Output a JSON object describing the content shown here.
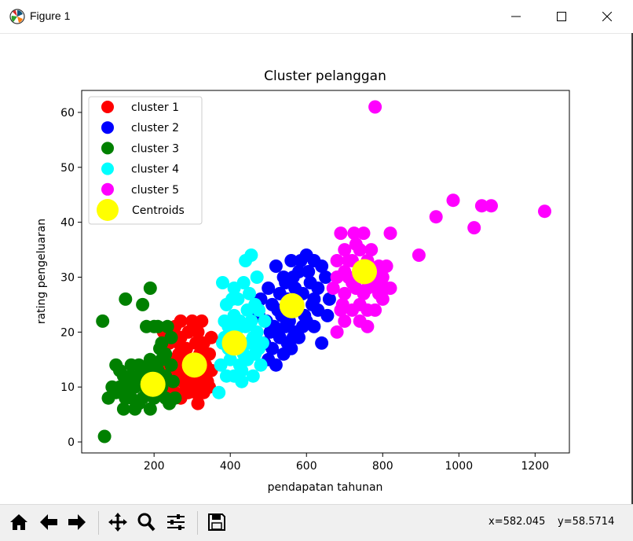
{
  "window": {
    "title": "Figure 1",
    "controls": [
      "minimize",
      "maximize",
      "close"
    ]
  },
  "toolbar": {
    "buttons": [
      {
        "name": "home",
        "icon": "home-icon"
      },
      {
        "name": "back",
        "icon": "arrow-left-icon"
      },
      {
        "name": "forward",
        "icon": "arrow-right-icon"
      },
      {
        "name": "pan",
        "icon": "move-icon"
      },
      {
        "name": "zoom",
        "icon": "magnifier-icon"
      },
      {
        "name": "configure-subplots",
        "icon": "sliders-icon"
      },
      {
        "name": "save",
        "icon": "floppy-icon"
      }
    ],
    "coord_x": "x=582.045",
    "coord_y": "y=58.5714"
  },
  "chart_data": {
    "type": "scatter",
    "title": "Cluster pelanggan",
    "xlabel": "pendapatan tahunan",
    "ylabel": "rating pengeluaran",
    "xlim": [
      10,
      1290
    ],
    "ylim": [
      -2,
      64
    ],
    "xticks": [
      200,
      400,
      600,
      800,
      1000,
      1200
    ],
    "yticks": [
      0,
      10,
      20,
      30,
      40,
      50,
      60
    ],
    "grid": false,
    "legend_position": "upper-left",
    "series": [
      {
        "name": "cluster 1",
        "color": "#ff0000",
        "points": [
          [
            225,
            20
          ],
          [
            240,
            18
          ],
          [
            255,
            21
          ],
          [
            270,
            19
          ],
          [
            285,
            17
          ],
          [
            300,
            22
          ],
          [
            315,
            20
          ],
          [
            330,
            18
          ],
          [
            345,
            16
          ],
          [
            260,
            13
          ],
          [
            275,
            11
          ],
          [
            290,
            9
          ],
          [
            305,
            12
          ],
          [
            320,
            10
          ],
          [
            335,
            14
          ],
          [
            250,
            15
          ],
          [
            265,
            16
          ],
          [
            280,
            14
          ],
          [
            295,
            15
          ],
          [
            310,
            13
          ],
          [
            325,
            12
          ],
          [
            340,
            11
          ],
          [
            255,
            9
          ],
          [
            270,
            8
          ],
          [
            285,
            10
          ],
          [
            300,
            11
          ],
          [
            315,
            7
          ],
          [
            330,
            9
          ],
          [
            240,
            12
          ],
          [
            245,
            10
          ],
          [
            320,
            16
          ],
          [
            310,
            18
          ],
          [
            290,
            20
          ],
          [
            265,
            18
          ],
          [
            350,
            19
          ],
          [
            300,
            14
          ],
          [
            280,
            12
          ],
          [
            235,
            14
          ],
          [
            350,
            13
          ],
          [
            270,
            22
          ],
          [
            325,
            22
          ],
          [
            310,
            9
          ],
          [
            345,
            10
          ]
        ]
      },
      {
        "name": "cluster 2",
        "color": "#0000ff",
        "points": [
          [
            500,
            28
          ],
          [
            520,
            32
          ],
          [
            540,
            30
          ],
          [
            560,
            33
          ],
          [
            580,
            31
          ],
          [
            600,
            34
          ],
          [
            620,
            33
          ],
          [
            640,
            32
          ],
          [
            510,
            25
          ],
          [
            530,
            27
          ],
          [
            550,
            26
          ],
          [
            570,
            28
          ],
          [
            590,
            27
          ],
          [
            610,
            29
          ],
          [
            630,
            28
          ],
          [
            650,
            30
          ],
          [
            495,
            22
          ],
          [
            515,
            21
          ],
          [
            535,
            23
          ],
          [
            555,
            22
          ],
          [
            575,
            24
          ],
          [
            595,
            23
          ],
          [
            615,
            25
          ],
          [
            490,
            18
          ],
          [
            510,
            17
          ],
          [
            530,
            19
          ],
          [
            550,
            18
          ],
          [
            570,
            20
          ],
          [
            590,
            21
          ],
          [
            500,
            15
          ],
          [
            520,
            14
          ],
          [
            540,
            16
          ],
          [
            560,
            17
          ],
          [
            580,
            19
          ],
          [
            600,
            22
          ],
          [
            620,
            21
          ],
          [
            640,
            18
          ],
          [
            660,
            26
          ],
          [
            655,
            23
          ],
          [
            605,
            31
          ],
          [
            585,
            33
          ],
          [
            565,
            30
          ],
          [
            545,
            29
          ],
          [
            525,
            24
          ],
          [
            505,
            20
          ],
          [
            525,
            20
          ],
          [
            545,
            21
          ],
          [
            565,
            19
          ],
          [
            620,
            26
          ],
          [
            630,
            24
          ],
          [
            480,
            26
          ],
          [
            475,
            23
          ]
        ]
      },
      {
        "name": "cluster 3",
        "color": "#008000",
        "points": [
          [
            65,
            22
          ],
          [
            70,
            1
          ],
          [
            80,
            8
          ],
          [
            90,
            10
          ],
          [
            100,
            14
          ],
          [
            110,
            13
          ],
          [
            120,
            12
          ],
          [
            125,
            26
          ],
          [
            130,
            11
          ],
          [
            140,
            12
          ],
          [
            150,
            10
          ],
          [
            160,
            14
          ],
          [
            170,
            25
          ],
          [
            180,
            21
          ],
          [
            190,
            28
          ],
          [
            200,
            21
          ],
          [
            210,
            21
          ],
          [
            215,
            17
          ],
          [
            220,
            15
          ],
          [
            230,
            12
          ],
          [
            100,
            9
          ],
          [
            110,
            10
          ],
          [
            120,
            6
          ],
          [
            130,
            9
          ],
          [
            140,
            8
          ],
          [
            150,
            6
          ],
          [
            160,
            7
          ],
          [
            170,
            8
          ],
          [
            180,
            9
          ],
          [
            190,
            6
          ],
          [
            200,
            8
          ],
          [
            210,
            9
          ],
          [
            220,
            10
          ],
          [
            230,
            8
          ],
          [
            240,
            7
          ],
          [
            160,
            12
          ],
          [
            170,
            11
          ],
          [
            180,
            13
          ],
          [
            190,
            15
          ],
          [
            200,
            14
          ],
          [
            210,
            13
          ],
          [
            220,
            18
          ],
          [
            230,
            16
          ],
          [
            245,
            14
          ],
          [
            245,
            19
          ],
          [
            235,
            21
          ],
          [
            250,
            11
          ],
          [
            255,
            8
          ],
          [
            140,
            14
          ],
          [
            125,
            8
          ]
        ]
      },
      {
        "name": "cluster 4",
        "color": "#00ffff",
        "points": [
          [
            370,
            9
          ],
          [
            375,
            14
          ],
          [
            380,
            18
          ],
          [
            385,
            22
          ],
          [
            390,
            25
          ],
          [
            395,
            21
          ],
          [
            400,
            19
          ],
          [
            405,
            26
          ],
          [
            410,
            23
          ],
          [
            415,
            20
          ],
          [
            420,
            17
          ],
          [
            425,
            14
          ],
          [
            430,
            11
          ],
          [
            435,
            16
          ],
          [
            440,
            21
          ],
          [
            445,
            24
          ],
          [
            450,
            27
          ],
          [
            455,
            22
          ],
          [
            460,
            19
          ],
          [
            465,
            16
          ],
          [
            470,
            20
          ],
          [
            475,
            24
          ],
          [
            480,
            14
          ],
          [
            485,
            18
          ],
          [
            490,
            22
          ],
          [
            380,
            29
          ],
          [
            440,
            33
          ],
          [
            455,
            34
          ],
          [
            470,
            30
          ],
          [
            420,
            26
          ],
          [
            400,
            15
          ],
          [
            390,
            12
          ],
          [
            410,
            12
          ],
          [
            430,
            13
          ],
          [
            445,
            15
          ],
          [
            460,
            12
          ],
          [
            475,
            17
          ],
          [
            395,
            17
          ],
          [
            385,
            19
          ],
          [
            425,
            22
          ],
          [
            410,
            28
          ],
          [
            435,
            29
          ],
          [
            465,
            25
          ],
          [
            450,
            18
          ],
          [
            420,
            18
          ],
          [
            405,
            21
          ]
        ]
      },
      {
        "name": "cluster 5",
        "color": "#ff00ff",
        "points": [
          [
            680,
            20
          ],
          [
            690,
            24
          ],
          [
            700,
            27
          ],
          [
            710,
            30
          ],
          [
            720,
            33
          ],
          [
            730,
            36
          ],
          [
            740,
            35
          ],
          [
            750,
            38
          ],
          [
            760,
            33
          ],
          [
            770,
            31
          ],
          [
            780,
            29
          ],
          [
            790,
            27
          ],
          [
            800,
            30
          ],
          [
            810,
            32
          ],
          [
            820,
            38
          ],
          [
            820,
            28
          ],
          [
            690,
            38
          ],
          [
            700,
            35
          ],
          [
            720,
            29
          ],
          [
            740,
            25
          ],
          [
            760,
            28
          ],
          [
            780,
            24
          ],
          [
            800,
            26
          ],
          [
            700,
            22
          ],
          [
            720,
            24
          ],
          [
            740,
            22
          ],
          [
            760,
            21
          ],
          [
            680,
            30
          ],
          [
            670,
            28
          ],
          [
            680,
            33
          ],
          [
            895,
            34
          ],
          [
            940,
            41
          ],
          [
            985,
            44
          ],
          [
            1040,
            39
          ],
          [
            1060,
            43
          ],
          [
            1085,
            43
          ],
          [
            1225,
            42
          ],
          [
            780,
            61
          ],
          [
            710,
            33
          ],
          [
            730,
            28
          ],
          [
            750,
            27
          ],
          [
            770,
            35
          ],
          [
            790,
            32
          ],
          [
            810,
            28
          ],
          [
            700,
            31
          ],
          [
            725,
            38
          ],
          [
            760,
            24
          ],
          [
            695,
            25
          ]
        ]
      },
      {
        "name": "Centroids",
        "color": "#ffff00",
        "points": [
          [
            197,
            10.5
          ],
          [
            306,
            14
          ],
          [
            411,
            18
          ],
          [
            562,
            24.8
          ],
          [
            752,
            31
          ]
        ]
      }
    ]
  }
}
